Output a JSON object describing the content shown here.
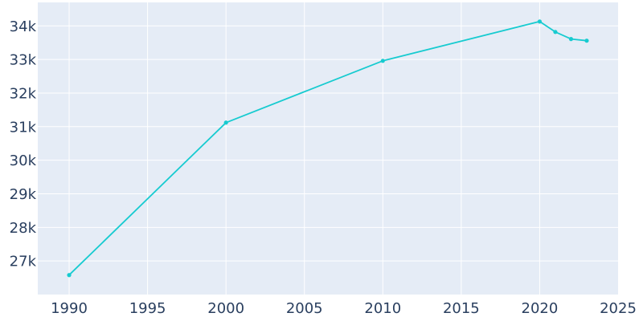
{
  "chart_data": {
    "type": "line",
    "title": "",
    "xlabel": "",
    "ylabel": "",
    "grid": true,
    "colors": {
      "plot_background": "#e5ecf6",
      "grid": "#ffffff",
      "line": "#17cbd0",
      "tick_text": "#2a3f5f"
    },
    "xlim": [
      1988,
      2025
    ],
    "ylim": [
      26000,
      34700
    ],
    "x_ticks": [
      {
        "value": 1990,
        "label": "1990"
      },
      {
        "value": 1995,
        "label": "1995"
      },
      {
        "value": 2000,
        "label": "2000"
      },
      {
        "value": 2005,
        "label": "2005"
      },
      {
        "value": 2010,
        "label": "2010"
      },
      {
        "value": 2015,
        "label": "2015"
      },
      {
        "value": 2020,
        "label": "2020"
      },
      {
        "value": 2025,
        "label": "2025"
      }
    ],
    "y_ticks": [
      {
        "value": 27000,
        "label": "27k"
      },
      {
        "value": 28000,
        "label": "28k"
      },
      {
        "value": 29000,
        "label": "29k"
      },
      {
        "value": 30000,
        "label": "30k"
      },
      {
        "value": 31000,
        "label": "31k"
      },
      {
        "value": 32000,
        "label": "32k"
      },
      {
        "value": 33000,
        "label": "33k"
      },
      {
        "value": 34000,
        "label": "34k"
      }
    ],
    "series": [
      {
        "x": [
          1990,
          2000,
          2010,
          2020,
          2021,
          2022,
          2023
        ],
        "y": [
          26580,
          31120,
          32960,
          34130,
          33820,
          33610,
          33560
        ]
      }
    ]
  }
}
